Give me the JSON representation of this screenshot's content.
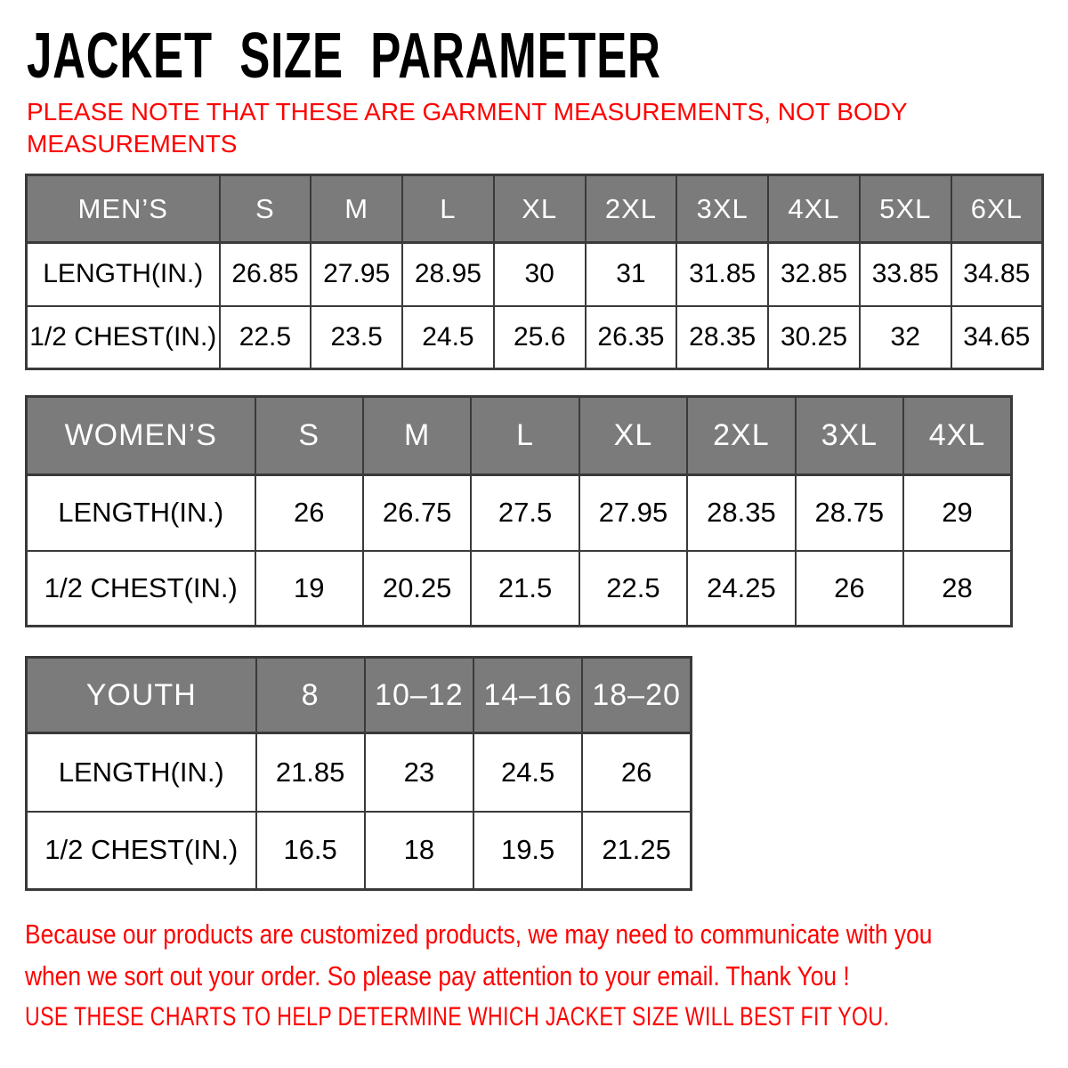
{
  "page": {
    "title": "JACKET SIZE PARAMETER",
    "note_top_lines": [
      "PLEASE NOTE THAT THESE ARE GARMENT MEASUREMENTS, NOT BODY",
      "MEASUREMENTS"
    ],
    "note_bottom_lines": [
      "Because our products are customized products, we may need to communicate with you",
      "when we sort out your order. So please pay attention to your email. Thank You !"
    ],
    "note_bottom_caps": "USE THESE CHARTS TO HELP DETERMINE WHICH JACKET SIZE WILL BEST FIT YOU."
  },
  "colors": {
    "accent_red": "#ff0000",
    "header_gray": "#7b7b7b",
    "table_border": "#3a3a3a"
  },
  "chart_data": [
    {
      "type": "table",
      "title": "MEN'S jacket size chart (inches)",
      "columns": [
        "MEN’S",
        "S",
        "M",
        "L",
        "XL",
        "2XL",
        "3XL",
        "4XL",
        "5XL",
        "6XL"
      ],
      "rows": [
        [
          "LENGTH(IN.)",
          "26.85",
          "27.95",
          "28.95",
          "30",
          "31",
          "31.85",
          "32.85",
          "33.85",
          "34.85"
        ],
        [
          "1/2 CHEST(IN.)",
          "22.5",
          "23.5",
          "24.5",
          "25.6",
          "26.35",
          "28.35",
          "30.25",
          "32",
          "34.65"
        ]
      ]
    },
    {
      "type": "table",
      "title": "WOMEN'S jacket size chart (inches)",
      "columns": [
        "WOMEN’S",
        "S",
        "M",
        "L",
        "XL",
        "2XL",
        "3XL",
        "4XL"
      ],
      "rows": [
        [
          "LENGTH(IN.)",
          "26",
          "26.75",
          "27.5",
          "27.95",
          "28.35",
          "28.75",
          "29"
        ],
        [
          "1/2 CHEST(IN.)",
          "19",
          "20.25",
          "21.5",
          "22.5",
          "24.25",
          "26",
          "28"
        ]
      ]
    },
    {
      "type": "table",
      "title": "YOUTH jacket size chart (inches)",
      "columns": [
        "YOUTH",
        "8",
        "10–12",
        "14–16",
        "18–20"
      ],
      "rows": [
        [
          "LENGTH(IN.)",
          "21.85",
          "23",
          "24.5",
          "26"
        ],
        [
          "1/2 CHEST(IN.)",
          "16.5",
          "18",
          "19.5",
          "21.25"
        ]
      ]
    }
  ]
}
